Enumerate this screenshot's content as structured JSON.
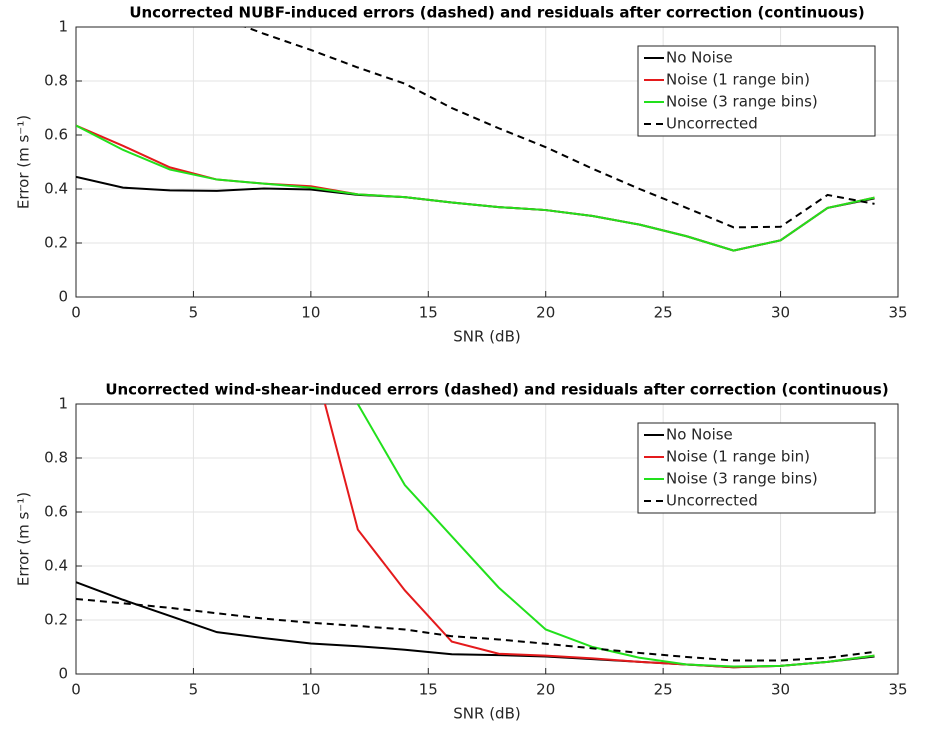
{
  "chart_data": [
    {
      "type": "line",
      "title": "Uncorrected NUBF-induced errors (dashed) and residuals after correction (continuous)",
      "xlabel": "SNR (dB)",
      "ylabel": "Error (m s⁻¹)",
      "x": [
        0,
        2,
        4,
        6,
        8,
        10,
        12,
        14,
        16,
        18,
        20,
        22,
        24,
        26,
        28,
        30,
        32,
        34
      ],
      "series": [
        {
          "name": "No Noise",
          "color": "#000000",
          "linestyle": "solid",
          "values": [
            0.445,
            0.405,
            0.395,
            0.393,
            0.402,
            0.398,
            0.378,
            0.37,
            0.35,
            0.333,
            0.322,
            0.3,
            0.268,
            0.225,
            0.172,
            0.21,
            0.33,
            0.365
          ]
        },
        {
          "name": "Noise (1 range bin)",
          "color": "#e41a1c",
          "linestyle": "solid",
          "values": [
            0.635,
            0.56,
            0.48,
            0.435,
            0.42,
            0.41,
            0.38,
            0.37,
            0.35,
            0.333,
            0.322,
            0.3,
            0.268,
            0.225,
            0.172,
            0.21,
            0.33,
            0.368
          ]
        },
        {
          "name": "Noise (3 range bins)",
          "color": "#22e01c",
          "linestyle": "solid",
          "values": [
            0.635,
            0.545,
            0.472,
            0.435,
            0.42,
            0.405,
            0.38,
            0.37,
            0.35,
            0.333,
            0.322,
            0.3,
            0.268,
            0.225,
            0.172,
            0.21,
            0.33,
            0.368
          ]
        },
        {
          "name": "Uncorrected",
          "color": "#000000",
          "linestyle": "dashed",
          "values": [
            null,
            null,
            null,
            1.04,
            0.975,
            0.915,
            0.85,
            0.79,
            0.7,
            0.625,
            0.555,
            0.475,
            0.4,
            0.33,
            0.258,
            0.26,
            0.378,
            0.345
          ]
        }
      ],
      "xlim": [
        0,
        35
      ],
      "ylim": [
        0,
        1
      ],
      "xticks": [
        0,
        5,
        10,
        15,
        20,
        25,
        30,
        35
      ],
      "yticks": [
        0,
        0.2,
        0.4,
        0.6,
        0.8,
        1
      ],
      "grid": true,
      "legend": "upper right"
    },
    {
      "type": "line",
      "title": "Uncorrected wind-shear-induced errors (dashed) and residuals after correction (continuous)",
      "xlabel": "SNR (dB)",
      "ylabel": "Error (m s⁻¹)",
      "x": [
        0,
        2,
        4,
        6,
        8,
        10,
        12,
        14,
        16,
        18,
        20,
        22,
        24,
        26,
        28,
        30,
        32,
        34
      ],
      "series": [
        {
          "name": "No Noise",
          "color": "#000000",
          "linestyle": "solid",
          "values": [
            0.34,
            0.275,
            0.215,
            0.155,
            0.133,
            0.113,
            0.103,
            0.09,
            0.073,
            0.07,
            0.065,
            0.055,
            0.045,
            0.035,
            0.025,
            0.03,
            0.045,
            0.065
          ]
        },
        {
          "name": "Noise (1 range bin)",
          "color": "#e41a1c",
          "linestyle": "solid",
          "values": [
            null,
            null,
            null,
            null,
            null,
            1.2,
            0.535,
            0.31,
            0.12,
            0.075,
            0.068,
            0.058,
            0.045,
            0.035,
            0.025,
            0.03,
            0.045,
            0.068
          ]
        },
        {
          "name": "Noise (3 range bins)",
          "color": "#22e01c",
          "linestyle": "solid",
          "values": [
            null,
            null,
            null,
            null,
            null,
            null,
            1.0,
            0.7,
            0.51,
            0.32,
            0.165,
            0.1,
            0.06,
            0.035,
            0.028,
            0.03,
            0.045,
            0.068
          ]
        },
        {
          "name": "Uncorrected",
          "color": "#000000",
          "linestyle": "dashed",
          "values": [
            0.278,
            0.262,
            0.245,
            0.225,
            0.205,
            0.19,
            0.178,
            0.165,
            0.14,
            0.128,
            0.112,
            0.095,
            0.078,
            0.063,
            0.05,
            0.05,
            0.06,
            0.082
          ]
        }
      ],
      "xlim": [
        0,
        35
      ],
      "ylim": [
        0,
        1
      ],
      "xticks": [
        0,
        5,
        10,
        15,
        20,
        25,
        30,
        35
      ],
      "yticks": [
        0,
        0.2,
        0.4,
        0.6,
        0.8,
        1
      ],
      "grid": true,
      "legend": "upper right"
    }
  ]
}
